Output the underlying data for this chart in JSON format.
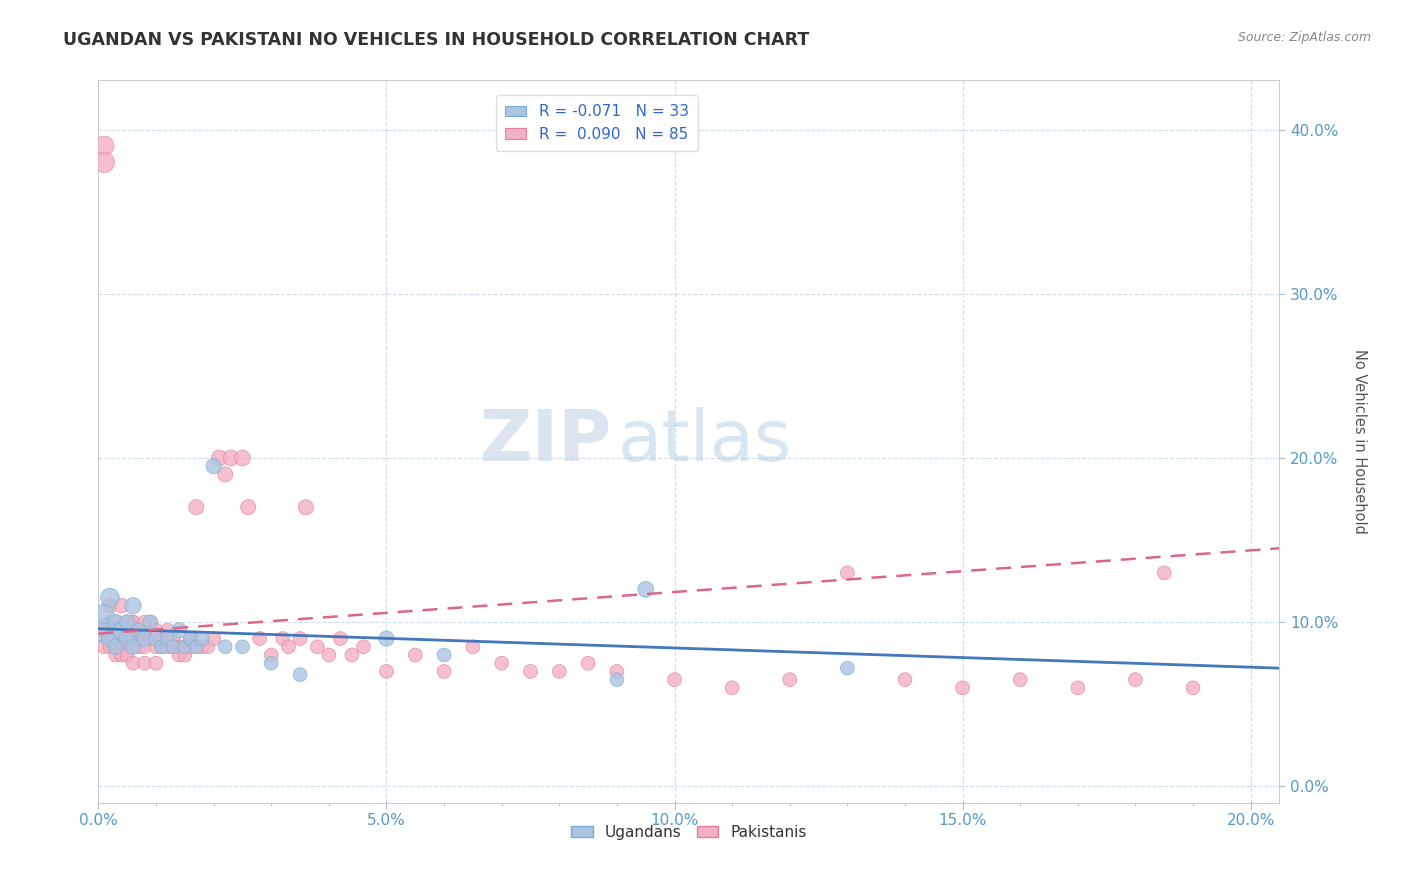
{
  "title": "UGANDAN VS PAKISTANI NO VEHICLES IN HOUSEHOLD CORRELATION CHART",
  "source": "Source: ZipAtlas.com",
  "xlim": [
    0.0,
    0.205
  ],
  "ylim": [
    -0.01,
    0.43
  ],
  "ylabel": "No Vehicles in Household",
  "ugandan_color": "#aac4e2",
  "pakistani_color": "#f4afc2",
  "ugandan_edge_color": "#7aaad0",
  "pakistani_edge_color": "#e080a0",
  "ugandan_line_color": "#4477bb",
  "pakistani_line_color": "#dd6688",
  "watermark_zip": "ZIP",
  "watermark_atlas": "atlas",
  "xticks": [
    0.0,
    0.05,
    0.1,
    0.15,
    0.2
  ],
  "yticks": [
    0.0,
    0.1,
    0.2,
    0.3,
    0.4
  ],
  "ugandan_x": [
    0.001,
    0.001,
    0.002,
    0.002,
    0.003,
    0.003,
    0.004,
    0.005,
    0.005,
    0.006,
    0.006,
    0.007,
    0.008,
    0.009,
    0.01,
    0.011,
    0.012,
    0.013,
    0.014,
    0.015,
    0.016,
    0.017,
    0.018,
    0.02,
    0.022,
    0.025,
    0.03,
    0.035,
    0.05,
    0.06,
    0.09,
    0.095,
    0.13
  ],
  "ugandan_y": [
    0.095,
    0.105,
    0.115,
    0.09,
    0.1,
    0.085,
    0.095,
    0.09,
    0.1,
    0.11,
    0.085,
    0.095,
    0.09,
    0.1,
    0.09,
    0.085,
    0.09,
    0.085,
    0.095,
    0.085,
    0.09,
    0.085,
    0.09,
    0.195,
    0.085,
    0.085,
    0.075,
    0.068,
    0.09,
    0.08,
    0.065,
    0.12,
    0.072
  ],
  "ugandan_sizes": [
    300,
    200,
    180,
    150,
    130,
    120,
    160,
    140,
    120,
    140,
    120,
    110,
    130,
    110,
    120,
    100,
    110,
    100,
    120,
    100,
    110,
    100,
    110,
    120,
    100,
    100,
    100,
    100,
    120,
    100,
    100,
    130,
    100
  ],
  "pakistani_x": [
    0.001,
    0.001,
    0.001,
    0.002,
    0.002,
    0.002,
    0.003,
    0.003,
    0.003,
    0.004,
    0.004,
    0.004,
    0.005,
    0.005,
    0.005,
    0.006,
    0.006,
    0.006,
    0.007,
    0.007,
    0.008,
    0.008,
    0.008,
    0.009,
    0.009,
    0.01,
    0.01,
    0.01,
    0.011,
    0.011,
    0.012,
    0.012,
    0.013,
    0.013,
    0.014,
    0.014,
    0.015,
    0.015,
    0.016,
    0.016,
    0.017,
    0.018,
    0.019,
    0.02,
    0.021,
    0.022,
    0.023,
    0.025,
    0.026,
    0.028,
    0.03,
    0.032,
    0.033,
    0.035,
    0.036,
    0.038,
    0.04,
    0.042,
    0.044,
    0.046,
    0.05,
    0.055,
    0.06,
    0.065,
    0.07,
    0.075,
    0.08,
    0.085,
    0.09,
    0.1,
    0.11,
    0.12,
    0.13,
    0.14,
    0.15,
    0.16,
    0.17,
    0.18,
    0.185,
    0.19,
    0.001,
    0.002,
    0.004,
    0.006,
    0.008
  ],
  "pakistani_y": [
    0.095,
    0.085,
    0.39,
    0.1,
    0.09,
    0.085,
    0.1,
    0.085,
    0.08,
    0.09,
    0.085,
    0.08,
    0.1,
    0.085,
    0.08,
    0.095,
    0.1,
    0.075,
    0.09,
    0.085,
    0.09,
    0.085,
    0.075,
    0.09,
    0.1,
    0.095,
    0.085,
    0.075,
    0.09,
    0.085,
    0.095,
    0.085,
    0.085,
    0.09,
    0.085,
    0.08,
    0.08,
    0.085,
    0.09,
    0.085,
    0.17,
    0.085,
    0.085,
    0.09,
    0.2,
    0.19,
    0.2,
    0.2,
    0.17,
    0.09,
    0.08,
    0.09,
    0.085,
    0.09,
    0.17,
    0.085,
    0.08,
    0.09,
    0.08,
    0.085,
    0.07,
    0.08,
    0.07,
    0.085,
    0.075,
    0.07,
    0.07,
    0.075,
    0.07,
    0.065,
    0.06,
    0.065,
    0.13,
    0.065,
    0.06,
    0.065,
    0.06,
    0.065,
    0.13,
    0.06,
    0.38,
    0.11,
    0.11,
    0.1,
    0.1
  ],
  "pakistani_sizes": [
    100,
    100,
    200,
    100,
    100,
    100,
    100,
    100,
    100,
    100,
    100,
    100,
    100,
    100,
    100,
    100,
    100,
    100,
    100,
    100,
    100,
    100,
    100,
    100,
    100,
    100,
    100,
    100,
    100,
    100,
    100,
    100,
    100,
    100,
    100,
    100,
    100,
    100,
    100,
    100,
    120,
    100,
    100,
    100,
    130,
    120,
    130,
    130,
    120,
    100,
    100,
    100,
    100,
    100,
    120,
    100,
    100,
    100,
    100,
    100,
    100,
    100,
    100,
    100,
    100,
    100,
    100,
    100,
    100,
    100,
    100,
    100,
    100,
    100,
    100,
    100,
    100,
    100,
    100,
    100,
    220,
    110,
    110,
    100,
    100
  ],
  "ug_line_x0": 0.0,
  "ug_line_x1": 0.205,
  "ug_line_y0": 0.096,
  "ug_line_y1": 0.072,
  "pk_line_x0": 0.0,
  "pk_line_x1": 0.205,
  "pk_line_y0": 0.093,
  "pk_line_y1": 0.145
}
